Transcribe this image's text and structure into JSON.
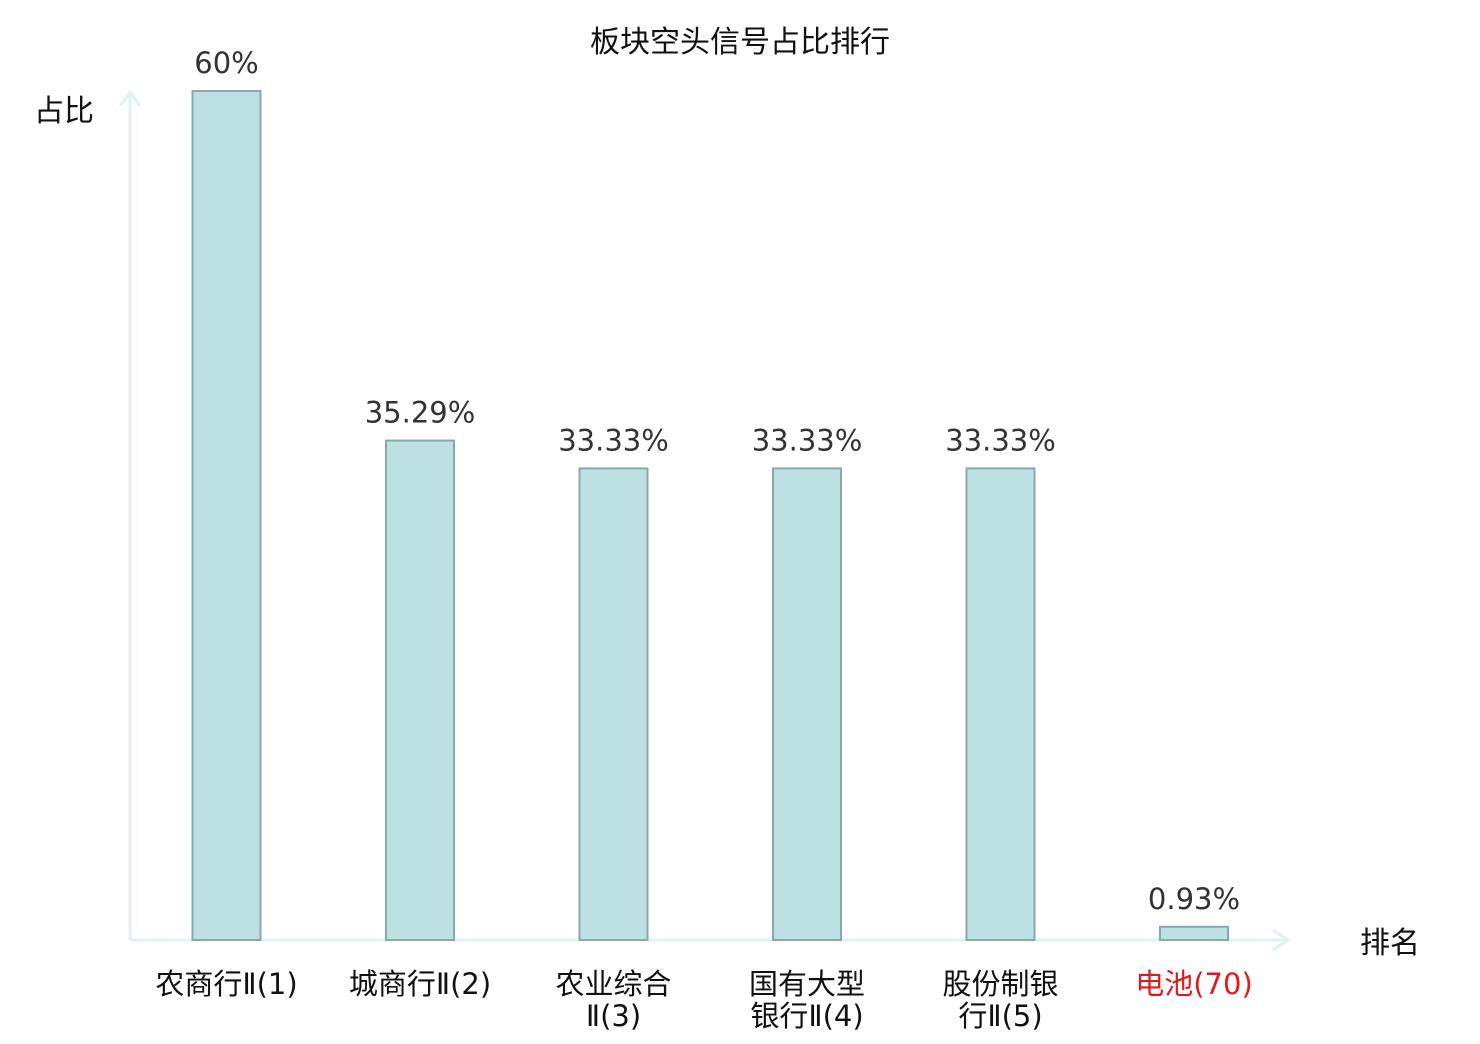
{
  "chart_data": {
    "type": "bar",
    "title": "板块空头信号占比排行",
    "ylabel": "占比",
    "xlabel": "排名",
    "ylim": [
      0,
      60
    ],
    "grid": false,
    "categories": [
      [
        "农商行Ⅱ(1)"
      ],
      [
        "城商行Ⅱ(2)"
      ],
      [
        "农业综合",
        "Ⅱ(3)"
      ],
      [
        "国有大型",
        "银行Ⅱ(4)"
      ],
      [
        "股份制银",
        "行Ⅱ(5)"
      ],
      [
        "电池(70)"
      ]
    ],
    "values": [
      60,
      35.29,
      33.33,
      33.33,
      33.33,
      0.93
    ],
    "value_labels": [
      "60%",
      "35.29%",
      "33.33%",
      "33.33%",
      "33.33%",
      "0.93%"
    ],
    "highlight_index": 5
  },
  "colors": {
    "bar_fill": "#bde0e2",
    "bar_stroke": "#8aa8aa",
    "axis": "#e0f2f0",
    "text": "#333333",
    "highlight_text": "#e0191c"
  }
}
